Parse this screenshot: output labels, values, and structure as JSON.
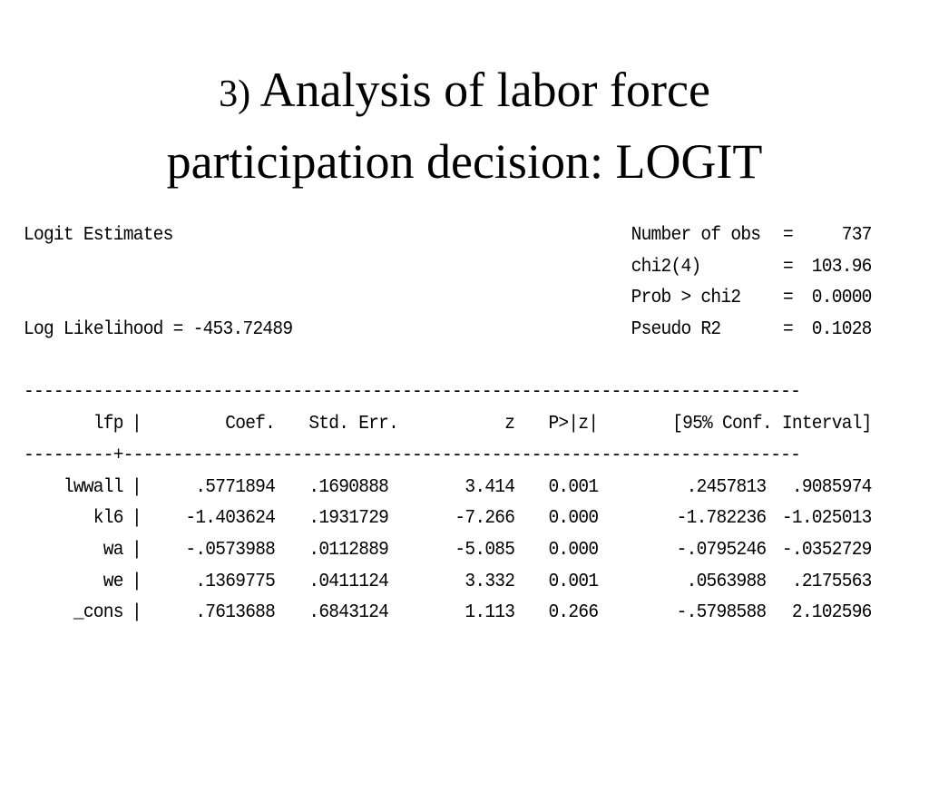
{
  "title": {
    "number": "3)",
    "line1": "Analysis of labor force",
    "line2": "participation decision: LOGIT"
  },
  "header": {
    "left_1": "Logit Estimates",
    "left_2": "Log Likelihood = -453.72489",
    "stats": [
      {
        "label": "Number of obs",
        "value": "737"
      },
      {
        "label": "chi2(4)",
        "value": "103.96"
      },
      {
        "label": "Prob > chi2",
        "value": "0.0000"
      },
      {
        "label": "Pseudo R2",
        "value": "0.1028"
      }
    ]
  },
  "rule_top": "------------------------------------------------------------------------------",
  "rule_mid": "---------+--------------------------------------------------------------------",
  "columns": {
    "var": "lfp",
    "coef": "Coef.",
    "se": "Std. Err.",
    "z": "z",
    "p": "P>|z|",
    "ci": "[95% Conf. Interval]"
  },
  "rows": [
    {
      "var": "lwwall",
      "coef": ".5771894",
      "se": ".1690888",
      "z": "3.414",
      "p": "0.001",
      "lo": ".2457813",
      "hi": ".9085974"
    },
    {
      "var": "kl6",
      "coef": "-1.403624",
      "se": ".1931729",
      "z": "-7.266",
      "p": "0.000",
      "lo": "-1.782236",
      "hi": "-1.025013"
    },
    {
      "var": "wa",
      "coef": "-.0573988",
      "se": ".0112889",
      "z": "-5.085",
      "p": "0.000",
      "lo": "-.0795246",
      "hi": "-.0352729"
    },
    {
      "var": "we",
      "coef": ".1369775",
      "se": ".0411124",
      "z": "3.332",
      "p": "0.001",
      "lo": ".0563988",
      "hi": ".2175563"
    },
    {
      "var": "_cons",
      "coef": ".7613688",
      "se": ".6843124",
      "z": "1.113",
      "p": "0.266",
      "lo": "-.5798588",
      "hi": "2.102596"
    }
  ]
}
